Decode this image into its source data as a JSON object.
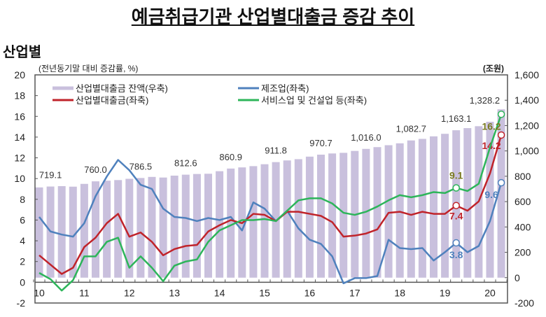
{
  "title": "예금취급기관 산업별대출금 증감 추이",
  "subtitle": "산업별",
  "chart_data": {
    "type": "bar+line",
    "left_unit": "(전년동기말 대비 증감률, %)",
    "right_unit": "(조원)",
    "ylim_left": [
      -2,
      20
    ],
    "yticks_left": [
      -2,
      0,
      2,
      4,
      6,
      8,
      10,
      12,
      14,
      16,
      18,
      20
    ],
    "ylim_right": [
      -200,
      1600
    ],
    "yticks_right": [
      "-200",
      "0",
      "200",
      "400",
      "600",
      "800",
      "1,000",
      "1,200",
      "1,400",
      "1,600"
    ],
    "yticks_right_values": [
      -200,
      0,
      200,
      400,
      600,
      800,
      1000,
      1200,
      1400,
      1600
    ],
    "x_tick_labels": [
      "10",
      "11",
      "12",
      "13",
      "14",
      "15",
      "16",
      "17",
      "18",
      "19",
      "20"
    ],
    "grid": false,
    "legend_placement": "top-left",
    "bars": {
      "name": "산업별대출금 잔액(우축)",
      "color": "#c9c0dd",
      "values": [
        712,
        719.1,
        722,
        718,
        740,
        760.0,
        765,
        770,
        780,
        786.5,
        795,
        790,
        805,
        812.6,
        818,
        820,
        840,
        860.9,
        870,
        880,
        895,
        911.8,
        925,
        935,
        955,
        970.7,
        980,
        985,
        1000,
        1016.0,
        1030,
        1045,
        1060,
        1082.7,
        1095,
        1115,
        1135,
        1163.1,
        1180,
        1195,
        1230,
        1328.2
      ],
      "labels": [
        {
          "i": 1,
          "text": "719.1"
        },
        {
          "i": 5,
          "text": "760.0"
        },
        {
          "i": 9,
          "text": "786.5"
        },
        {
          "i": 13,
          "text": "812.6"
        },
        {
          "i": 17,
          "text": "860.9"
        },
        {
          "i": 21,
          "text": "911.8"
        },
        {
          "i": 25,
          "text": "970.7"
        },
        {
          "i": 29,
          "text": "1,016.0"
        },
        {
          "i": 33,
          "text": "1,082.7"
        },
        {
          "i": 37,
          "text": "1,163.1"
        },
        {
          "i": 41,
          "text": "1,328.2"
        }
      ]
    },
    "series": [
      {
        "name": "제조업(좌축)",
        "color": "#4f81bd",
        "values": [
          6.3,
          4.9,
          4.6,
          4.4,
          5.7,
          8.3,
          10.2,
          11.8,
          10.8,
          9.4,
          9.0,
          7.1,
          6.3,
          6.2,
          5.9,
          6.2,
          6.0,
          6.3,
          5.0,
          7.7,
          7.1,
          5.9,
          6.9,
          5.2,
          4.1,
          3.7,
          2.5,
          -0.1,
          0.4,
          0.4,
          0.6,
          4.1,
          3.3,
          3.2,
          3.3,
          2.1,
          2.9,
          3.8,
          2.9,
          3.5,
          5.9,
          9.6
        ],
        "labels": [
          {
            "i": 37,
            "text": "3.8"
          },
          {
            "i": 41,
            "text": "9.6"
          }
        ]
      },
      {
        "name": "산업별대출금(좌축)",
        "color": "#c0232a",
        "values": [
          2.6,
          1.7,
          0.8,
          1.4,
          3.4,
          4.3,
          5.7,
          6.6,
          4.4,
          4.8,
          3.9,
          2.6,
          3.2,
          3.5,
          3.6,
          4.9,
          5.5,
          6.0,
          5.7,
          6.6,
          6.5,
          5.9,
          6.8,
          6.8,
          6.6,
          6.4,
          5.8,
          4.4,
          4.5,
          4.7,
          5.1,
          6.7,
          6.8,
          6.5,
          6.8,
          6.6,
          6.6,
          7.4,
          6.9,
          7.8,
          10.5,
          14.2
        ],
        "labels": [
          {
            "i": 37,
            "text": "7.4"
          },
          {
            "i": 41,
            "text": "14.2"
          }
        ]
      },
      {
        "name": "서비스업 및 건설업 등(좌축)",
        "color": "#2db55a",
        "values": [
          0.9,
          0.3,
          -0.8,
          0.2,
          2.5,
          2.5,
          3.9,
          4.3,
          1.4,
          2.5,
          1.4,
          0.1,
          1.6,
          2.0,
          2.2,
          3.9,
          5.0,
          5.5,
          6.0,
          6.0,
          6.1,
          5.9,
          6.9,
          7.9,
          8.1,
          8.1,
          7.6,
          6.7,
          6.5,
          6.8,
          7.3,
          7.9,
          8.4,
          8.2,
          8.4,
          8.7,
          8.6,
          9.1,
          8.8,
          9.5,
          13.0,
          16.2
        ],
        "labels": [
          {
            "i": 37,
            "text": "9.1"
          },
          {
            "i": 41,
            "text": "16.2"
          }
        ]
      }
    ]
  }
}
